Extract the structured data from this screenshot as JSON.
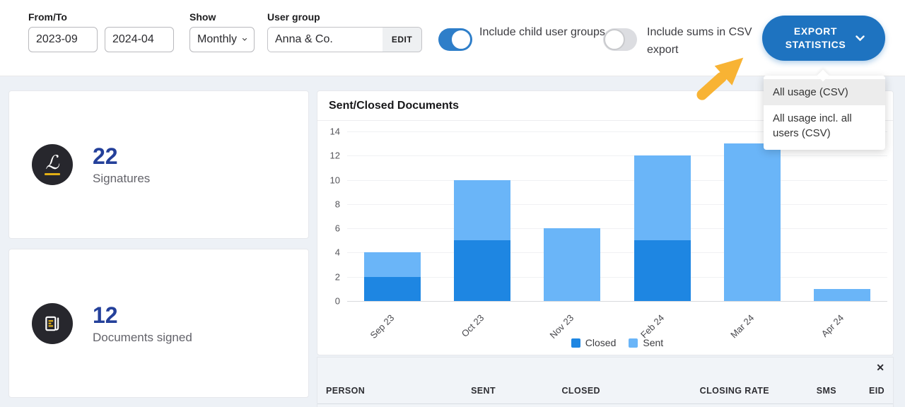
{
  "topbar": {
    "from_to_label": "From/To",
    "from_value": "2023-09",
    "to_value": "2024-04",
    "show_label": "Show",
    "show_value": "Monthly",
    "user_group_label": "User group",
    "user_group_value": "Anna & Co.",
    "edit_label": "EDIT",
    "toggle_child_groups": {
      "label": "Include child user groups",
      "state": true
    },
    "toggle_csv_sums": {
      "label": "Include sums in CSV export",
      "state": false
    },
    "export_button_label": "EXPORT STATISTICS"
  },
  "export_menu": {
    "items": [
      "All usage (CSV)",
      "All usage incl. all users (CSV)"
    ],
    "highlighted_index": 0
  },
  "stat_cards": [
    {
      "value": "22",
      "label": "Signatures",
      "icon": "signature-icon"
    },
    {
      "value": "12",
      "label": "Documents signed",
      "icon": "document-icon"
    }
  ],
  "chart_data": {
    "type": "bar",
    "stacked": true,
    "title": "Sent/Closed Documents",
    "categories": [
      "Sep 23",
      "Oct 23",
      "Nov 23",
      "Feb 24",
      "Mar 24",
      "Apr 24"
    ],
    "series": [
      {
        "name": "Closed",
        "color": "#1e86e2",
        "values": [
          2,
          5,
          0,
          5,
          0,
          0
        ]
      },
      {
        "name": "Sent",
        "color": "#6ab5f8",
        "values": [
          2,
          5,
          6,
          7,
          13,
          1
        ]
      }
    ],
    "ylim": [
      0,
      14
    ],
    "yticks": [
      0,
      2,
      4,
      6,
      8,
      10,
      12,
      14
    ],
    "grid": true,
    "legend_position": "bottom"
  },
  "table": {
    "close_label": "✕",
    "columns": [
      "PERSON",
      "SENT",
      "CLOSED",
      "CLOSING RATE",
      "SMS",
      "EID"
    ]
  },
  "colors": {
    "accent_blue": "#1e73c0",
    "toggle_on": "#2e7ec9",
    "bar_closed": "#1e86e2",
    "bar_sent": "#6ab5f8",
    "stat_number": "#24409a",
    "arrow": "#f8b334",
    "page_bg": "#edf1f6",
    "icon_circle": "#27272d",
    "icon_yellow": "#e2af15"
  }
}
